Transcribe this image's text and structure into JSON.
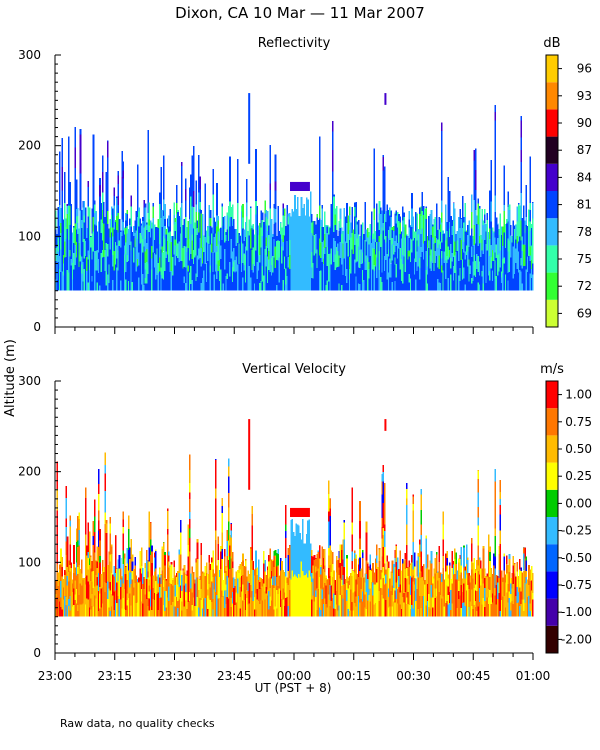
{
  "title": "Dixon, CA 10 Mar — 11 Mar 2007",
  "footnote": "Raw data, no quality checks",
  "chart_data": [
    {
      "type": "heatmap",
      "title": "Reflectivity",
      "ylabel": "Altitude (m)",
      "xlabel": "UT  (PST + 8)",
      "ylim": [
        0,
        300
      ],
      "yticks": [
        "0",
        "100",
        "200",
        "300"
      ],
      "xticks": [
        "23:00",
        "23:15",
        "23:30",
        "23:45",
        "00:00",
        "00:15",
        "00:30",
        "00:45",
        "01:00"
      ],
      "colorbar": {
        "unit": "dB",
        "levels": [
          "69",
          "72",
          "75",
          "78",
          "81",
          "84",
          "87",
          "90",
          "93",
          "96"
        ],
        "colors": [
          "#ccff33",
          "#33ff33",
          "#33ffaa",
          "#33bbff",
          "#0044ff",
          "#4400cc",
          "#220022",
          "#ff0000",
          "#ff8800",
          "#ffcc00"
        ]
      },
      "data_floor_m": 40,
      "typical_top_m": 120,
      "gap_m": [
        160,
        40
      ],
      "gap_time": "23:59–00:04"
    },
    {
      "type": "heatmap",
      "title": "Vertical Velocity",
      "ylabel": "Altitude (m)",
      "xlabel": "UT  (PST + 8)",
      "ylim": [
        0,
        300
      ],
      "yticks": [
        "0",
        "100",
        "200",
        "300"
      ],
      "xticks": [
        "23:00",
        "23:15",
        "23:30",
        "23:45",
        "00:00",
        "00:15",
        "00:30",
        "00:45",
        "01:00"
      ],
      "colorbar": {
        "unit": "m/s",
        "levels": [
          "-2.00",
          "-1.00",
          "-0.75",
          "-0.50",
          "-0.25",
          "0.00",
          "0.25",
          "0.50",
          "0.75",
          "1.00"
        ],
        "colors": [
          "#330000",
          "#4400aa",
          "#0000ff",
          "#0066ff",
          "#33bbff",
          "#00cc00",
          "#ffff00",
          "#ffbb00",
          "#ff7700",
          "#ff0000"
        ]
      },
      "data_floor_m": 40,
      "typical_top_m": 100,
      "gap_m": [
        160,
        40
      ],
      "gap_time": "23:59–00:04"
    }
  ]
}
